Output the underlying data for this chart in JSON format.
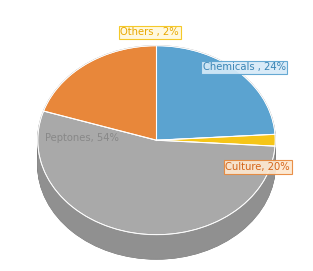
{
  "labels": [
    "Chemicals",
    "Others",
    "Peptones",
    "Culture"
  ],
  "values": [
    24,
    2,
    54,
    20
  ],
  "colors": [
    "#5BA3D0",
    "#F5C518",
    "#A9A9A9",
    "#E8873A"
  ],
  "startangle": 90,
  "background_color": "#ffffff",
  "shadow_color_top": "#999999",
  "shadow_color_bottom": "#707070",
  "label_texts": [
    "Chemicals , 24%",
    "Others , 2%",
    "Peptones, 54%",
    "Culture, 20%"
  ],
  "label_text_colors": [
    "#3A85B5",
    "#E8A800",
    "#888888",
    "#D4651A"
  ],
  "label_bg_colors": [
    "#D6EAF8",
    "#FFF8DC",
    null,
    "#FDE8D0"
  ],
  "label_border_colors": [
    "#5BA3D0",
    "#F5C518",
    null,
    "#E8873A"
  ]
}
